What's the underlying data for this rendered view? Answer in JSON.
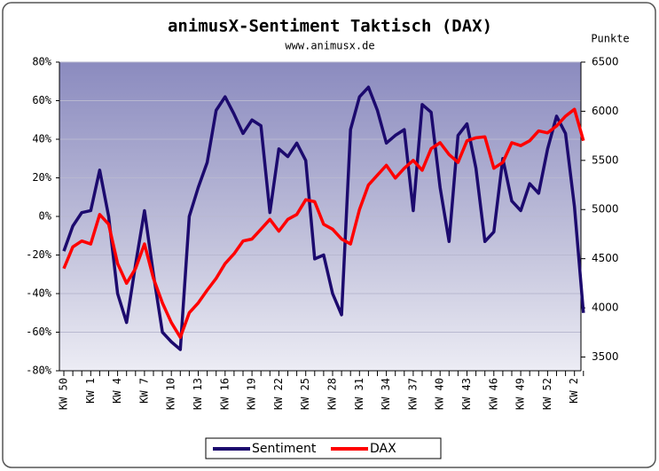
{
  "chart_data": {
    "type": "line",
    "title": "animusX-Sentiment Taktisch (DAX)",
    "subtitle": "www.animusx.de",
    "y2_label": "Punkte",
    "categories": [
      "KW 50",
      null,
      null,
      "KW 1",
      null,
      null,
      "KW 4",
      null,
      null,
      "KW 7",
      null,
      null,
      "KW 10",
      null,
      null,
      "KW 13",
      null,
      null,
      "KW 16",
      null,
      null,
      "KW 19",
      null,
      null,
      "KW 22",
      null,
      null,
      "KW 25",
      null,
      null,
      "KW 28",
      null,
      null,
      "KW 31",
      null,
      null,
      "KW 34",
      null,
      null,
      "KW 37",
      null,
      null,
      "KW 40",
      null,
      null,
      "KW 43",
      null,
      null,
      "KW 46",
      null,
      null,
      "KW 49",
      null,
      null,
      "KW 52",
      null,
      null,
      "KW 2",
      null
    ],
    "series": [
      {
        "name": "Sentiment",
        "color": "#1c0a6e",
        "axis": "y",
        "values": [
          -18,
          -5,
          2,
          3,
          24,
          0,
          -40,
          -55,
          -25,
          3,
          -30,
          -60,
          -65,
          -69,
          0,
          15,
          28,
          55,
          62,
          53,
          43,
          50,
          47,
          2,
          35,
          31,
          38,
          29,
          -22,
          -20,
          -40,
          -51,
          45,
          62,
          67,
          55,
          38,
          42,
          45,
          3,
          58,
          54,
          15,
          -13,
          42,
          48,
          25,
          -13,
          -8,
          30,
          8,
          3,
          17,
          12,
          35,
          52,
          43,
          5,
          -50
        ]
      },
      {
        "name": "DAX",
        "color": "#ff0000",
        "axis": "y2",
        "values": [
          4400,
          4620,
          4680,
          4650,
          4950,
          4850,
          4450,
          4250,
          4400,
          4650,
          4300,
          4050,
          3850,
          3700,
          3950,
          4050,
          4180,
          4300,
          4450,
          4550,
          4680,
          4700,
          4800,
          4900,
          4780,
          4900,
          4950,
          5100,
          5080,
          4850,
          4800,
          4700,
          4650,
          5000,
          5250,
          5350,
          5450,
          5320,
          5420,
          5500,
          5400,
          5620,
          5680,
          5560,
          5480,
          5700,
          5730,
          5740,
          5420,
          5480,
          5680,
          5650,
          5700,
          5800,
          5780,
          5850,
          5950,
          6020,
          5700
        ]
      }
    ],
    "ylim": [
      -80,
      80
    ],
    "yticks": [
      {
        "value": -80,
        "label": "-80%"
      },
      {
        "value": -60,
        "label": "-60%"
      },
      {
        "value": -40,
        "label": "-40%"
      },
      {
        "value": -20,
        "label": "-20%"
      },
      {
        "value": 0,
        "label": "0%"
      },
      {
        "value": 20,
        "label": "20%"
      },
      {
        "value": 40,
        "label": "40%"
      },
      {
        "value": 60,
        "label": "60%"
      },
      {
        "value": 80,
        "label": "80%"
      }
    ],
    "y2lim": [
      3360,
      6500
    ],
    "y2ticks": [
      3500,
      4000,
      4500,
      5000,
      5500,
      6000,
      6500
    ],
    "grid": true,
    "legend": "bottom"
  }
}
